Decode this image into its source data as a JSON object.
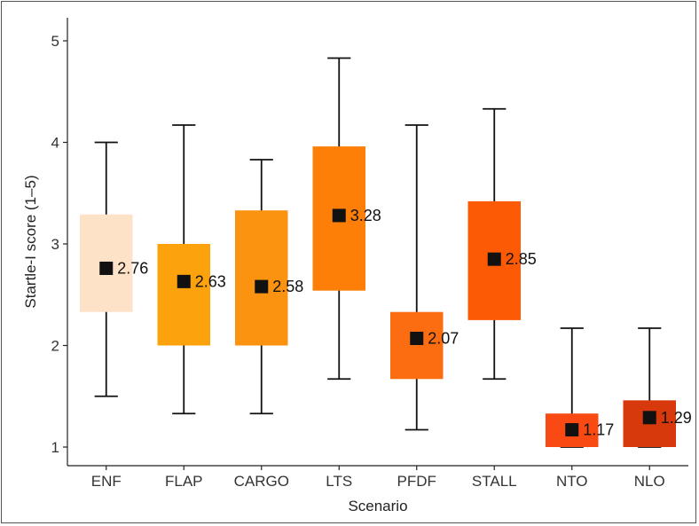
{
  "chart_data": {
    "type": "boxplot",
    "xlabel": "Scenario",
    "ylabel": "Startle-I score (1–5)",
    "ylim": [
      0.88,
      5.12
    ],
    "yticks": [
      1,
      2,
      3,
      4,
      5
    ],
    "categories": [
      "ENF",
      "FLAP",
      "CARGO",
      "LTS",
      "PFDF",
      "STALL",
      "NTO",
      "NLO"
    ],
    "boxes": [
      {
        "category": "ENF",
        "whisker_low": 1.5,
        "q1": 2.33,
        "q3": 3.29,
        "whisker_high": 4.0,
        "mean": 2.76,
        "mean_label": "2.76",
        "color": "#fde2c8"
      },
      {
        "category": "FLAP",
        "whisker_low": 1.33,
        "q1": 2.0,
        "q3": 3.0,
        "whisker_high": 4.17,
        "mean": 2.63,
        "mean_label": "2.63",
        "color": "#fba20c"
      },
      {
        "category": "CARGO",
        "whisker_low": 1.33,
        "q1": 2.0,
        "q3": 3.33,
        "whisker_high": 3.83,
        "mean": 2.58,
        "mean_label": "2.58",
        "color": "#fb9210"
      },
      {
        "category": "LTS",
        "whisker_low": 1.67,
        "q1": 2.54,
        "q3": 3.96,
        "whisker_high": 4.83,
        "mean": 3.28,
        "mean_label": "3.28",
        "color": "#fd7f07"
      },
      {
        "category": "PFDF",
        "whisker_low": 1.17,
        "q1": 1.67,
        "q3": 2.33,
        "whisker_high": 4.17,
        "mean": 2.07,
        "mean_label": "2.07",
        "color": "#fc6d12"
      },
      {
        "category": "STALL",
        "whisker_low": 1.67,
        "q1": 2.25,
        "q3": 3.42,
        "whisker_high": 4.33,
        "mean": 2.85,
        "mean_label": "2.85",
        "color": "#fd5a05"
      },
      {
        "category": "NTO",
        "whisker_low": 1.0,
        "q1": 1.0,
        "q3": 1.33,
        "whisker_high": 2.17,
        "mean": 1.17,
        "mean_label": "1.17",
        "color": "#f84a12"
      },
      {
        "category": "NLO",
        "whisker_low": 1.0,
        "q1": 1.0,
        "q3": 1.46,
        "whisker_high": 2.17,
        "mean": 1.29,
        "mean_label": "1.29",
        "color": "#d7390c"
      }
    ],
    "grid": false,
    "legend": "none"
  }
}
